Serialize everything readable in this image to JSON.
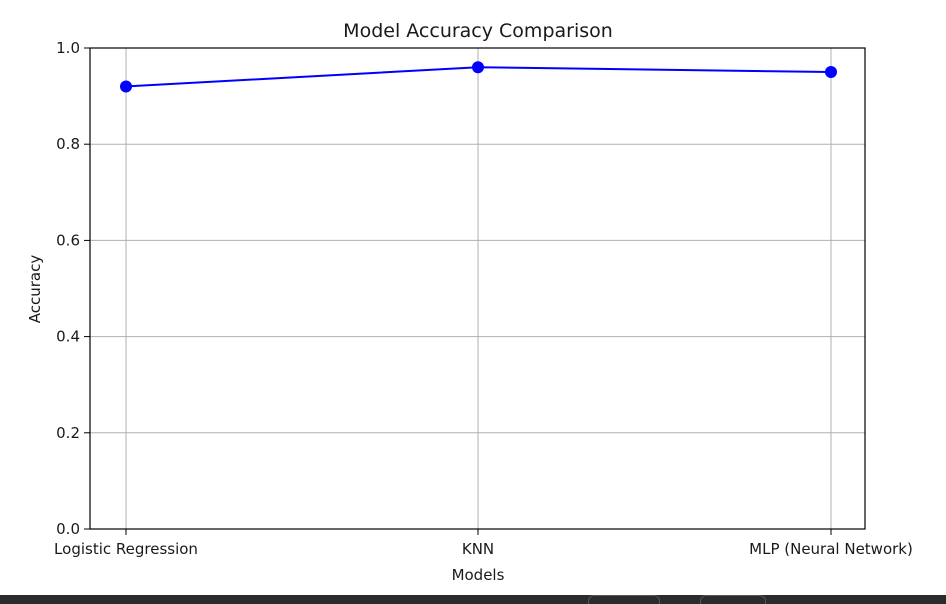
{
  "chart_data": {
    "type": "line",
    "title": "Model Accuracy Comparison",
    "xlabel": "Models",
    "ylabel": "Accuracy",
    "categories": [
      "Logistic Regression",
      "KNN",
      "MLP (Neural Network)"
    ],
    "series": [
      {
        "values": [
          0.92,
          0.96,
          0.95
        ],
        "color": "#0000ff",
        "marker": "circle"
      }
    ],
    "ylim": [
      0,
      1.0
    ],
    "yticks": [
      0.0,
      0.2,
      0.4,
      0.6,
      0.8,
      1.0
    ],
    "ytick_labels": [
      "0.0",
      "0.2",
      "0.4",
      "0.6",
      "0.8",
      "1.0"
    ],
    "grid": true,
    "legend": false
  },
  "colors": {
    "page_background": "#2b2b2b",
    "figure_background": "#ffffff",
    "grid": "#b0b0b0",
    "axis": "#000000"
  }
}
